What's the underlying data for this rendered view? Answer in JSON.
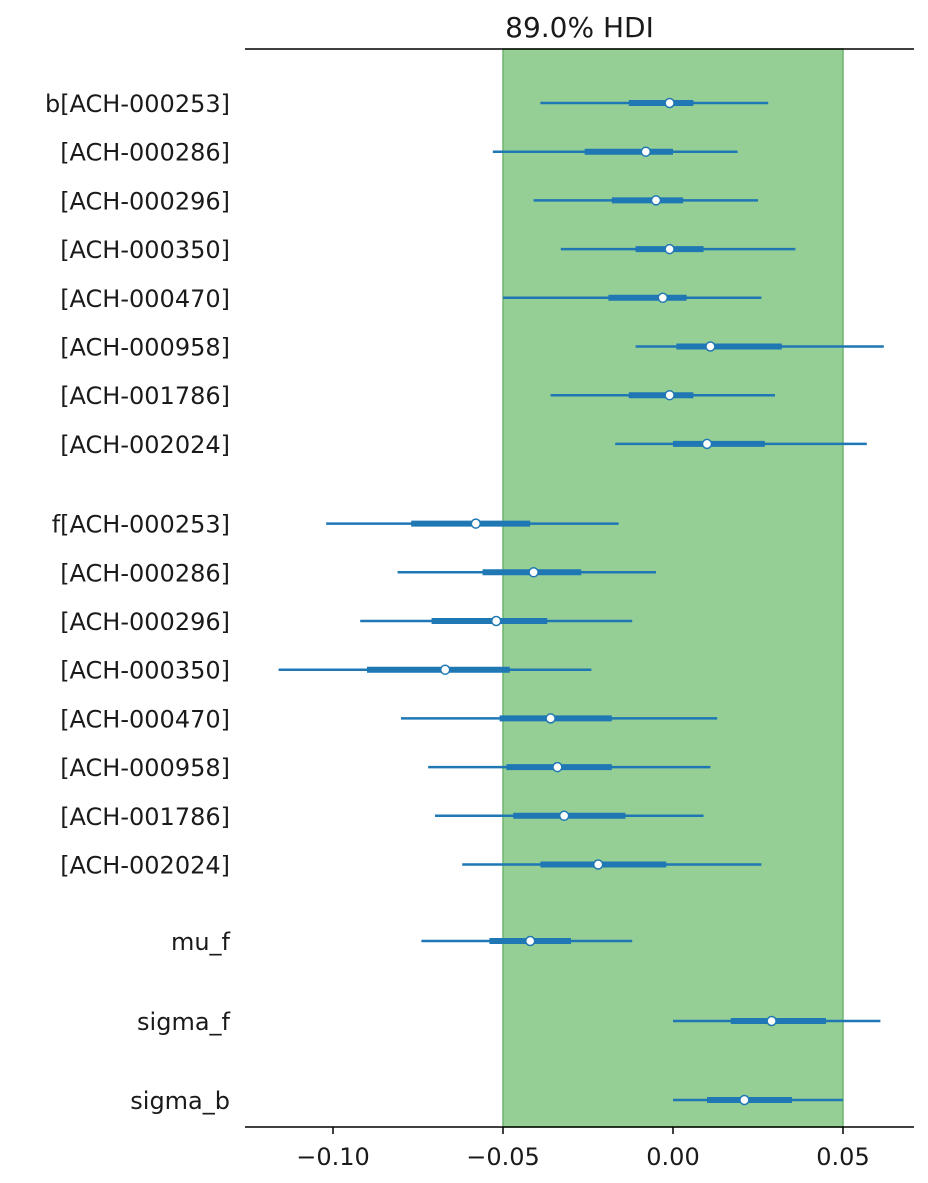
{
  "chart_data": {
    "type": "forest",
    "title": "89.0% HDI",
    "xlabel": "",
    "ylabel": "",
    "xlim": [
      -0.125,
      0.07
    ],
    "x_ticks": [
      -0.1,
      -0.05,
      0.0,
      0.05
    ],
    "x_tick_labels": [
      "−0.10",
      "−0.05",
      "0.00",
      "0.05"
    ],
    "grid": false,
    "legend": "none",
    "rope_band": {
      "low": -0.05,
      "high": 0.05,
      "color": "#96cf95"
    },
    "series_color": "#1f77b4",
    "groups": [
      {
        "rows": [
          {
            "label": "b[ACH-000253]",
            "point": -0.001,
            "hdi_inner": [
              -0.013,
              0.006
            ],
            "hdi_outer": [
              -0.039,
              0.028
            ]
          },
          {
            "label": "[ACH-000286]",
            "point": -0.008,
            "hdi_inner": [
              -0.026,
              0.0
            ],
            "hdi_outer": [
              -0.053,
              0.019
            ]
          },
          {
            "label": "[ACH-000296]",
            "point": -0.005,
            "hdi_inner": [
              -0.018,
              0.003
            ],
            "hdi_outer": [
              -0.041,
              0.025
            ]
          },
          {
            "label": "[ACH-000350]",
            "point": -0.001,
            "hdi_inner": [
              -0.011,
              0.009
            ],
            "hdi_outer": [
              -0.033,
              0.036
            ]
          },
          {
            "label": "[ACH-000470]",
            "point": -0.003,
            "hdi_inner": [
              -0.019,
              0.004
            ],
            "hdi_outer": [
              -0.05,
              0.026
            ]
          },
          {
            "label": "[ACH-000958]",
            "point": 0.011,
            "hdi_inner": [
              0.001,
              0.032
            ],
            "hdi_outer": [
              -0.011,
              0.062
            ]
          },
          {
            "label": "[ACH-001786]",
            "point": -0.001,
            "hdi_inner": [
              -0.013,
              0.006
            ],
            "hdi_outer": [
              -0.036,
              0.03
            ]
          },
          {
            "label": "[ACH-002024]",
            "point": 0.01,
            "hdi_inner": [
              0.0,
              0.027
            ],
            "hdi_outer": [
              -0.017,
              0.057
            ]
          }
        ]
      },
      {
        "rows": [
          {
            "label": "f[ACH-000253]",
            "point": -0.058,
            "hdi_inner": [
              -0.077,
              -0.042
            ],
            "hdi_outer": [
              -0.102,
              -0.016
            ]
          },
          {
            "label": "[ACH-000286]",
            "point": -0.041,
            "hdi_inner": [
              -0.056,
              -0.027
            ],
            "hdi_outer": [
              -0.081,
              -0.005
            ]
          },
          {
            "label": "[ACH-000296]",
            "point": -0.052,
            "hdi_inner": [
              -0.071,
              -0.037
            ],
            "hdi_outer": [
              -0.092,
              -0.012
            ]
          },
          {
            "label": "[ACH-000350]",
            "point": -0.067,
            "hdi_inner": [
              -0.09,
              -0.048
            ],
            "hdi_outer": [
              -0.116,
              -0.024
            ]
          },
          {
            "label": "[ACH-000470]",
            "point": -0.036,
            "hdi_inner": [
              -0.051,
              -0.018
            ],
            "hdi_outer": [
              -0.08,
              0.013
            ]
          },
          {
            "label": "[ACH-000958]",
            "point": -0.034,
            "hdi_inner": [
              -0.049,
              -0.018
            ],
            "hdi_outer": [
              -0.072,
              0.011
            ]
          },
          {
            "label": "[ACH-001786]",
            "point": -0.032,
            "hdi_inner": [
              -0.047,
              -0.014
            ],
            "hdi_outer": [
              -0.07,
              0.009
            ]
          },
          {
            "label": "[ACH-002024]",
            "point": -0.022,
            "hdi_inner": [
              -0.039,
              -0.002
            ],
            "hdi_outer": [
              -0.062,
              0.026
            ]
          }
        ]
      },
      {
        "rows": [
          {
            "label": "mu_f",
            "point": -0.042,
            "hdi_inner": [
              -0.054,
              -0.03
            ],
            "hdi_outer": [
              -0.074,
              -0.012
            ]
          }
        ]
      },
      {
        "rows": [
          {
            "label": "sigma_f",
            "point": 0.029,
            "hdi_inner": [
              0.017,
              0.045
            ],
            "hdi_outer": [
              0.0,
              0.061
            ]
          }
        ]
      },
      {
        "rows": [
          {
            "label": "sigma_b",
            "point": 0.021,
            "hdi_inner": [
              0.01,
              0.035
            ],
            "hdi_outer": [
              0.0,
              0.05
            ]
          }
        ]
      }
    ]
  }
}
